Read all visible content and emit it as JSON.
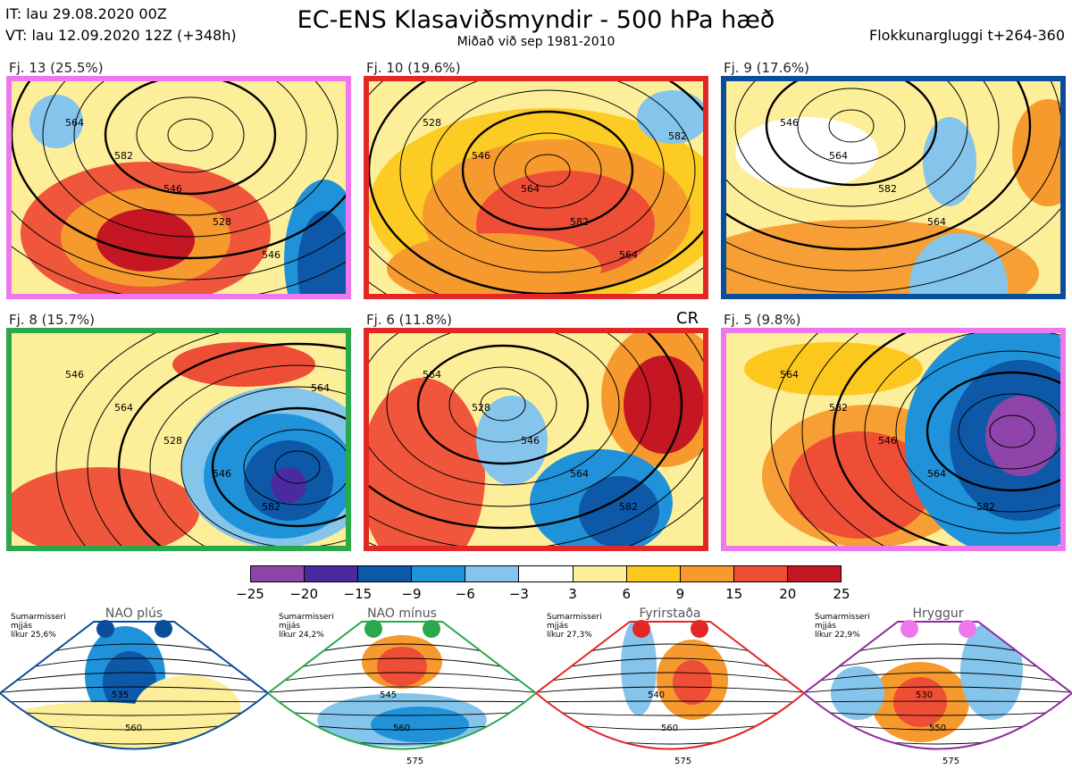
{
  "header": {
    "line1": "IT: lau 29.08.2020 00Z",
    "line2": "VT: lau 12.09.2020 12Z  (+348h)",
    "title": "EC-ENS Klasaviðsmyndir - 500 hPa hæð",
    "subtitle": "Miðað við sep 1981-2010",
    "window": "Flokkunargluggi t+264-360"
  },
  "cr_label": "CR",
  "panels": [
    {
      "label": "Fj. 13 (25.5%)",
      "border": "#ee77ee",
      "contours": [
        "564",
        "582",
        "546",
        "528",
        "546"
      ]
    },
    {
      "label": "Fj. 10 (19.6%)",
      "border": "#e32626",
      "contours": [
        "528",
        "546",
        "564",
        "582",
        "564",
        "582"
      ]
    },
    {
      "label": "Fj. 9 (17.6%)",
      "border": "#0a4e9b",
      "contours": [
        "546",
        "564",
        "582",
        "564"
      ]
    },
    {
      "label": "Fj. 8 (15.7%)",
      "border": "#2aa84a",
      "contours": [
        "546",
        "564",
        "528",
        "546",
        "582",
        "564"
      ]
    },
    {
      "label": "Fj. 6 (11.8%)",
      "border": "#e32626",
      "contours": [
        "564",
        "528",
        "546",
        "564",
        "582"
      ]
    },
    {
      "label": "Fj. 5 (9.8%)",
      "border": "#ee77ee",
      "contours": [
        "564",
        "582",
        "546",
        "564",
        "582"
      ]
    }
  ],
  "colorbar": {
    "ticks": [
      "−25",
      "−20",
      "−15",
      "−9",
      "−6",
      "−3",
      "3",
      "6",
      "9",
      "15",
      "20",
      "25"
    ],
    "colors": [
      "#8e44a8",
      "#4b2aa0",
      "#0e58a8",
      "#1f92d9",
      "#85c5ec",
      "#ffffff",
      "#fdee9a",
      "#fcc81e",
      "#f79a2e",
      "#ee4d36",
      "#c41623"
    ]
  },
  "regimes": [
    {
      "title": "NAO plús",
      "info1": "Sumarmisseri",
      "info2": "mjjás",
      "info3": "líkur 25,6%",
      "edge": "#0a4e9b",
      "dot": "#0a4e9b",
      "contours": [
        "535",
        "560"
      ]
    },
    {
      "title": "NAO mínus",
      "info1": "Sumarmisseri",
      "info2": "mjjás",
      "info3": "líkur 24,2%",
      "edge": "#2aa84a",
      "dot": "#2aa84a",
      "contours": [
        "545",
        "560",
        "575"
      ]
    },
    {
      "title": "Fyrirstaða",
      "info1": "Sumarmisseri",
      "info2": "mjjás",
      "info3": "líkur 27,3%",
      "edge": "#e32626",
      "dot": "#e32626",
      "contours": [
        "540",
        "560",
        "575"
      ]
    },
    {
      "title": "Hryggur",
      "info1": "Sumarmisseri",
      "info2": "mjjás",
      "info3": "líkur 22,9%",
      "edge": "#8e2a9e",
      "dot": "#ee77ee",
      "contours": [
        "530",
        "550",
        "575"
      ]
    }
  ]
}
